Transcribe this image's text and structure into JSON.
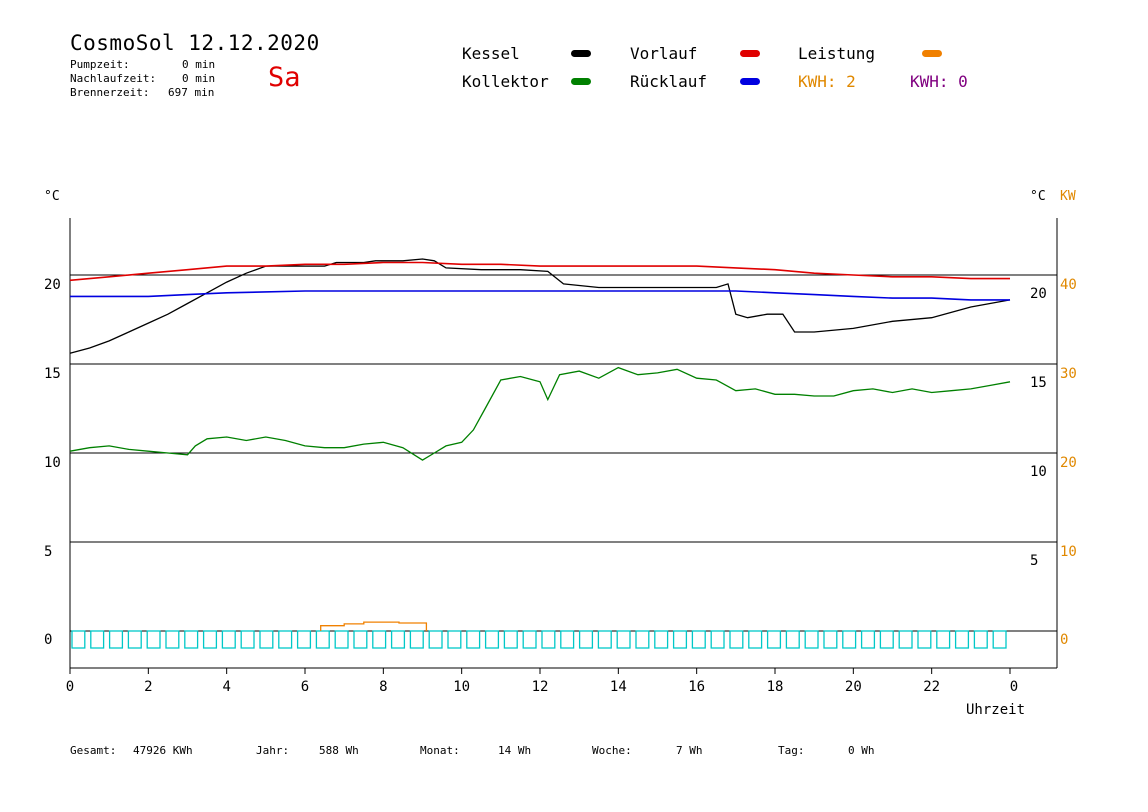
{
  "header": {
    "title": "CosmoSol 12.12.2020",
    "day": "Sa",
    "stats": [
      {
        "label": "Pumpzeit:",
        "value": "0 min"
      },
      {
        "label": "Nachlaufzeit:",
        "value": "0 min"
      },
      {
        "label": "Brennerzeit:",
        "value": "697 min"
      }
    ]
  },
  "legend": {
    "kessel": {
      "label": "Kessel",
      "color": "#000000"
    },
    "vorlauf": {
      "label": "Vorlauf",
      "color": "#e00000"
    },
    "leistung": {
      "label": "Leistung",
      "color": "#f08000"
    },
    "kollektor": {
      "label": "Kollektor",
      "color": "#008000"
    },
    "ruecklauf": {
      "label": "Rücklauf",
      "color": "#0000e0"
    },
    "kwh1": "KWH: 2",
    "kwh2": "KWH: 0",
    "kwh1_color": "#e08800",
    "kwh2_color": "#800080"
  },
  "footer": {
    "gesamt_label": "Gesamt:",
    "gesamt_value": "47926 KWh",
    "jahr_label": "Jahr:",
    "jahr_value": "588 Wh",
    "monat_label": "Monat:",
    "monat_value": "14 Wh",
    "woche_label": "Woche:",
    "woche_value": "7 Wh",
    "tag_label": "Tag:",
    "tag_value": "0 Wh"
  },
  "chart_data": {
    "type": "line",
    "xlabel": "Uhrzeit",
    "x_ticks": [
      "0",
      "2",
      "4",
      "6",
      "8",
      "10",
      "12",
      "14",
      "16",
      "18",
      "20",
      "22",
      "0"
    ],
    "xlim": [
      0,
      24
    ],
    "left_unit": "°C",
    "right_unit_1": "°C",
    "right_unit_2": "KW",
    "panels": [
      {
        "left_tick": "20",
        "right_tick_c": "20",
        "right_tick_kw": "40"
      },
      {
        "left_tick": "15",
        "right_tick_c": "15",
        "right_tick_kw": "30"
      },
      {
        "left_tick": "10",
        "right_tick_c": "10",
        "right_tick_kw": "20"
      },
      {
        "left_tick": "5",
        "right_tick_c": "5",
        "right_tick_kw": "10"
      },
      {
        "left_tick": "0",
        "right_tick_c": "",
        "right_tick_kw": "0"
      }
    ],
    "series": [
      {
        "name": "Kessel",
        "color": "#000000",
        "points": [
          [
            0,
            15.6
          ],
          [
            0.5,
            15.9
          ],
          [
            1,
            16.3
          ],
          [
            1.5,
            16.8
          ],
          [
            2,
            17.3
          ],
          [
            2.5,
            17.8
          ],
          [
            3,
            18.4
          ],
          [
            3.5,
            19.0
          ],
          [
            4,
            19.6
          ],
          [
            4.5,
            20.1
          ],
          [
            5,
            20.5
          ],
          [
            6,
            20.5
          ],
          [
            6.5,
            20.5
          ],
          [
            6.8,
            20.7
          ],
          [
            7.5,
            20.7
          ],
          [
            7.8,
            20.8
          ],
          [
            8.5,
            20.8
          ],
          [
            9,
            20.9
          ],
          [
            9.3,
            20.8
          ],
          [
            9.6,
            20.4
          ],
          [
            10.5,
            20.3
          ],
          [
            11.5,
            20.3
          ],
          [
            12.2,
            20.2
          ],
          [
            12.6,
            19.5
          ],
          [
            13.5,
            19.3
          ],
          [
            15,
            19.3
          ],
          [
            16,
            19.3
          ],
          [
            16.5,
            19.3
          ],
          [
            16.8,
            19.5
          ],
          [
            17.0,
            17.8
          ],
          [
            17.3,
            17.6
          ],
          [
            17.8,
            17.8
          ],
          [
            18.2,
            17.8
          ],
          [
            18.5,
            16.8
          ],
          [
            19,
            16.8
          ],
          [
            20,
            17.0
          ],
          [
            21,
            17.4
          ],
          [
            22,
            17.6
          ],
          [
            23,
            18.2
          ],
          [
            24,
            18.6
          ]
        ]
      },
      {
        "name": "Vorlauf",
        "color": "#e00000",
        "points": [
          [
            0,
            19.7
          ],
          [
            1,
            19.9
          ],
          [
            2,
            20.1
          ],
          [
            3,
            20.3
          ],
          [
            4,
            20.5
          ],
          [
            5,
            20.5
          ],
          [
            6,
            20.6
          ],
          [
            7,
            20.6
          ],
          [
            8,
            20.7
          ],
          [
            9,
            20.7
          ],
          [
            10,
            20.6
          ],
          [
            11,
            20.6
          ],
          [
            12,
            20.5
          ],
          [
            14,
            20.5
          ],
          [
            16,
            20.5
          ],
          [
            17,
            20.4
          ],
          [
            18,
            20.3
          ],
          [
            19,
            20.1
          ],
          [
            20,
            20.0
          ],
          [
            21,
            19.9
          ],
          [
            22,
            19.9
          ],
          [
            23,
            19.8
          ],
          [
            24,
            19.8
          ]
        ]
      },
      {
        "name": "Rücklauf",
        "color": "#0000e0",
        "points": [
          [
            0,
            18.8
          ],
          [
            2,
            18.8
          ],
          [
            3,
            18.9
          ],
          [
            4,
            19.0
          ],
          [
            6,
            19.1
          ],
          [
            8,
            19.1
          ],
          [
            10,
            19.1
          ],
          [
            12,
            19.1
          ],
          [
            14,
            19.1
          ],
          [
            16,
            19.1
          ],
          [
            17,
            19.1
          ],
          [
            18,
            19.0
          ],
          [
            19,
            18.9
          ],
          [
            20,
            18.8
          ],
          [
            21,
            18.7
          ],
          [
            22,
            18.7
          ],
          [
            23,
            18.6
          ],
          [
            24,
            18.6
          ]
        ]
      },
      {
        "name": "Kollektor",
        "color": "#008000",
        "points": [
          [
            0,
            10.1
          ],
          [
            0.5,
            10.3
          ],
          [
            1,
            10.4
          ],
          [
            1.5,
            10.2
          ],
          [
            2,
            10.1
          ],
          [
            2.5,
            10.0
          ],
          [
            3,
            9.9
          ],
          [
            3.2,
            10.4
          ],
          [
            3.5,
            10.8
          ],
          [
            4,
            10.9
          ],
          [
            4.5,
            10.7
          ],
          [
            5,
            10.9
          ],
          [
            5.5,
            10.7
          ],
          [
            6,
            10.4
          ],
          [
            6.5,
            10.3
          ],
          [
            7,
            10.3
          ],
          [
            7.5,
            10.5
          ],
          [
            8,
            10.6
          ],
          [
            8.5,
            10.3
          ],
          [
            9,
            9.6
          ],
          [
            9.3,
            10.0
          ],
          [
            9.6,
            10.4
          ],
          [
            10,
            10.6
          ],
          [
            10.3,
            11.3
          ],
          [
            10.6,
            12.5
          ],
          [
            11,
            14.1
          ],
          [
            11.5,
            14.3
          ],
          [
            12,
            14.0
          ],
          [
            12.2,
            13.0
          ],
          [
            12.5,
            14.4
          ],
          [
            13,
            14.6
          ],
          [
            13.5,
            14.2
          ],
          [
            14,
            14.8
          ],
          [
            14.5,
            14.4
          ],
          [
            15,
            14.5
          ],
          [
            15.5,
            14.7
          ],
          [
            16,
            14.2
          ],
          [
            16.5,
            14.1
          ],
          [
            17,
            13.5
          ],
          [
            17.5,
            13.6
          ],
          [
            18,
            13.3
          ],
          [
            18.5,
            13.3
          ],
          [
            19,
            13.2
          ],
          [
            19.5,
            13.2
          ],
          [
            20,
            13.5
          ],
          [
            20.5,
            13.6
          ],
          [
            21,
            13.4
          ],
          [
            21.5,
            13.6
          ],
          [
            22,
            13.4
          ],
          [
            22.5,
            13.5
          ],
          [
            23,
            13.6
          ],
          [
            23.5,
            13.8
          ],
          [
            24,
            14.0
          ]
        ]
      },
      {
        "name": "Leistung",
        "color": "#f08000",
        "points": [
          [
            6.4,
            0
          ],
          [
            6.4,
            0.3
          ],
          [
            7.0,
            0.3
          ],
          [
            7.0,
            0.4
          ],
          [
            7.5,
            0.4
          ],
          [
            7.5,
            0.5
          ],
          [
            8.4,
            0.5
          ],
          [
            8.4,
            0.45
          ],
          [
            9.1,
            0.45
          ],
          [
            9.1,
            0
          ]
        ]
      }
    ],
    "pump_markers": {
      "color": "#00c8c8",
      "count": 50
    }
  }
}
